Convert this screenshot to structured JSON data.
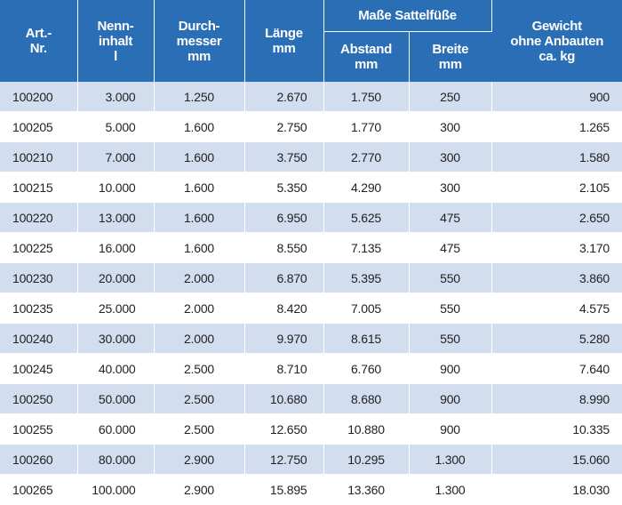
{
  "table": {
    "headers": {
      "art_nr": "Art.-\nNr.",
      "nenninhalt": "Nenn-\ninhalt\nl",
      "durchmesser": "Durch-\nmesser\nmm",
      "laenge": "Länge\nmm",
      "sattelfuesse_group": "Maße Sattelfüße",
      "abstand": "Abstand\nmm",
      "breite": "Breite\nmm",
      "gewicht": "Gewicht\nohne Anbauten\nca. kg"
    },
    "rows": [
      [
        "100200",
        "3.000",
        "1.250",
        "2.670",
        "1.750",
        "250",
        "900"
      ],
      [
        "100205",
        "5.000",
        "1.600",
        "2.750",
        "1.770",
        "300",
        "1.265"
      ],
      [
        "100210",
        "7.000",
        "1.600",
        "3.750",
        "2.770",
        "300",
        "1.580"
      ],
      [
        "100215",
        "10.000",
        "1.600",
        "5.350",
        "4.290",
        "300",
        "2.105"
      ],
      [
        "100220",
        "13.000",
        "1.600",
        "6.950",
        "5.625",
        "475",
        "2.650"
      ],
      [
        "100225",
        "16.000",
        "1.600",
        "8.550",
        "7.135",
        "475",
        "3.170"
      ],
      [
        "100230",
        "20.000",
        "2.000",
        "6.870",
        "5.395",
        "550",
        "3.860"
      ],
      [
        "100235",
        "25.000",
        "2.000",
        "8.420",
        "7.005",
        "550",
        "4.575"
      ],
      [
        "100240",
        "30.000",
        "2.000",
        "9.970",
        "8.615",
        "550",
        "5.280"
      ],
      [
        "100245",
        "40.000",
        "2.500",
        "8.710",
        "6.760",
        "900",
        "7.640"
      ],
      [
        "100250",
        "50.000",
        "2.500",
        "10.680",
        "8.680",
        "900",
        "8.990"
      ],
      [
        "100255",
        "60.000",
        "2.500",
        "12.650",
        "10.880",
        "900",
        "10.335"
      ],
      [
        "100260",
        "80.000",
        "2.900",
        "12.750",
        "10.295",
        "1.300",
        "15.060"
      ],
      [
        "100265",
        "100.000",
        "2.900",
        "15.895",
        "13.360",
        "1.300",
        "18.030"
      ]
    ]
  },
  "colors": {
    "header_bg": "#2a6eb6",
    "row_alt_bg": "#d2ddf0",
    "row_bg": "#ffffff"
  }
}
